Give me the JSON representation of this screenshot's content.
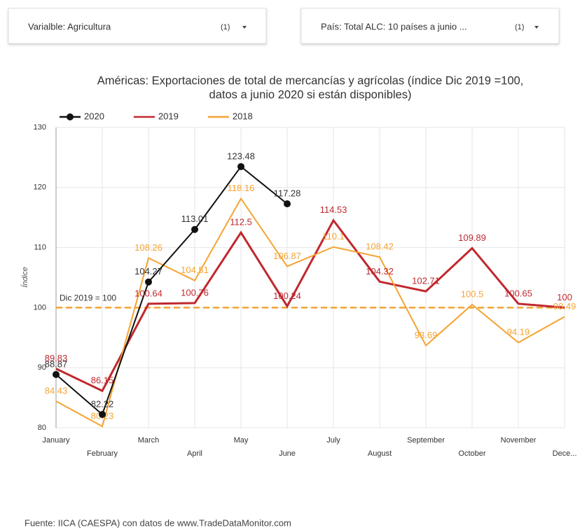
{
  "filters": [
    {
      "label": "Varialble: Agricultura",
      "count": "(1)"
    },
    {
      "label": "País: Total ALC: 10 países a junio ...",
      "count": "(1)"
    }
  ],
  "chart_data": {
    "type": "line",
    "title": [
      "Américas: Exportaciones de total de mercancías y agrícolas (índice Dic 2019 =100,",
      "datos a junio 2020 si están disponibles)"
    ],
    "ylabel": "Índice",
    "categories": [
      "January",
      "February",
      "March",
      "April",
      "May",
      "June",
      "July",
      "August",
      "September",
      "October",
      "November",
      "Dece..."
    ],
    "series": [
      {
        "name": "2020",
        "color": "#111111",
        "marker": "circle",
        "label_color": "#333333",
        "values": [
          88.87,
          82.22,
          104.27,
          113.01,
          123.48,
          117.28,
          null,
          null,
          null,
          null,
          null,
          null
        ]
      },
      {
        "name": "2019",
        "color": "#c0282e",
        "values": [
          89.83,
          86.15,
          100.64,
          100.76,
          112.5,
          100.24,
          114.53,
          104.32,
          102.71,
          109.89,
          100.65,
          100
        ]
      },
      {
        "name": "2018",
        "color": "#f4a433",
        "values": [
          84.43,
          80.23,
          108.26,
          104.51,
          118.16,
          106.87,
          110.1,
          108.42,
          93.69,
          100.5,
          94.19,
          98.49
        ]
      }
    ],
    "reference_line": {
      "value": 100,
      "label": "Dic 2019 = 100",
      "color": "#f4a433"
    },
    "ylim": [
      80,
      130
    ],
    "yticks": [
      80,
      90,
      100,
      110,
      120,
      130
    ],
    "grid": true
  },
  "source": "Fuente: IICA (CAESPA) con datos de www.TradeDataMonitor.com"
}
